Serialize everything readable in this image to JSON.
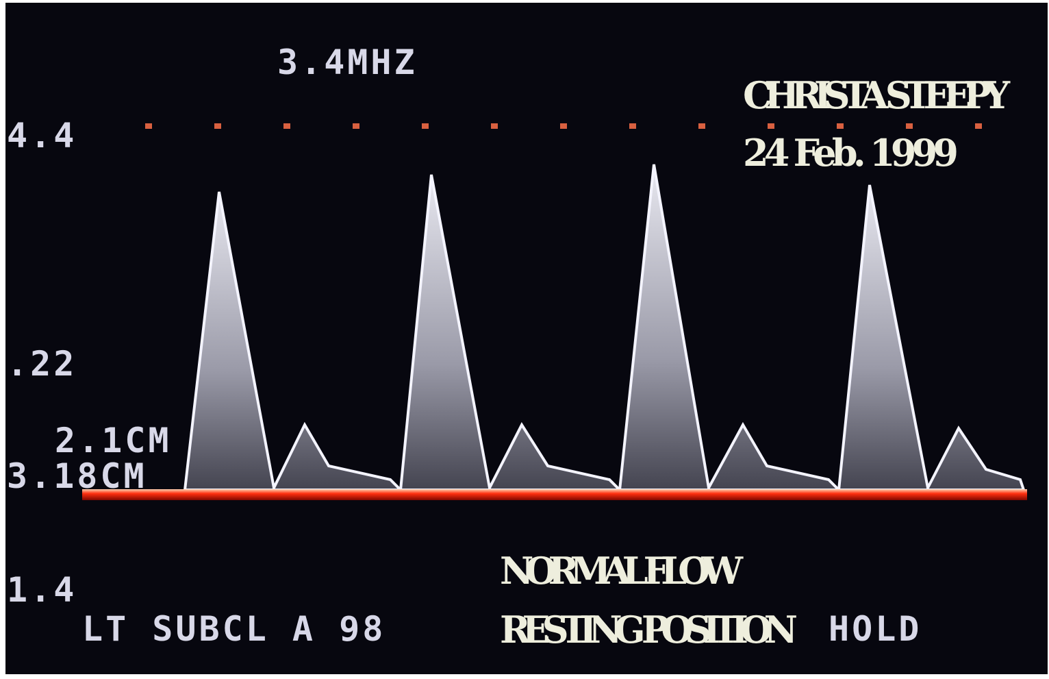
{
  "header": {
    "frequency": "3.4MHZ",
    "patient": "CHRISTA  STEEPY",
    "date": "24 Feb. 1999"
  },
  "scale_labels": [
    "4.4",
    ".22",
    "2.1CM",
    "3.18CM",
    "1.4"
  ],
  "footer": {
    "vessel": "LT SUBCL A 98",
    "caption_line1": "NORMAL  FLOW",
    "caption_line2": "RESTING  POSITION",
    "caption_hold": "HOLD"
  }
}
